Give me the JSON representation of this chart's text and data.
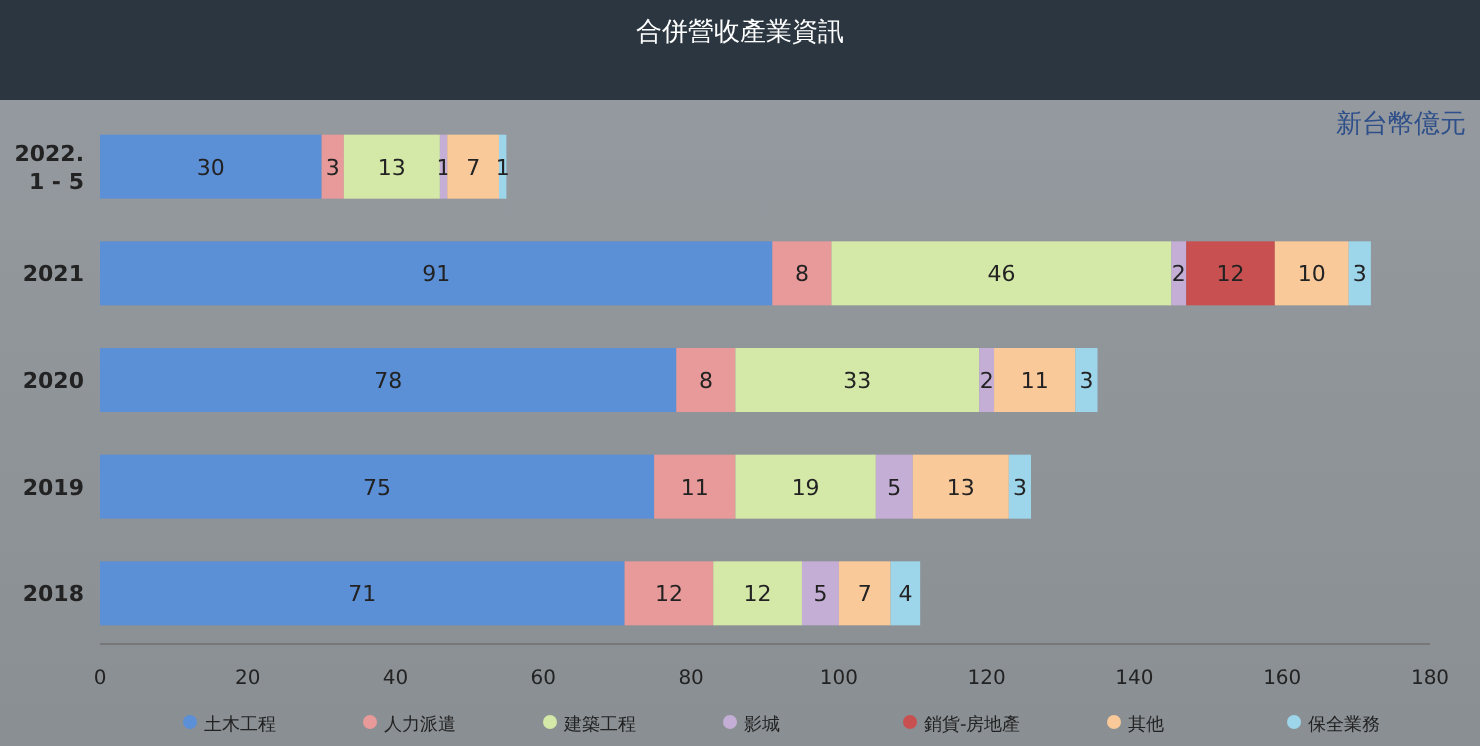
{
  "chart_data": {
    "type": "bar",
    "title": "合併營收產業資訊",
    "orientation": "horizontal",
    "stacked": true,
    "categories": [
      "2022.\n1 - 5",
      "2021",
      "2020",
      "2019",
      "2018"
    ],
    "series": [
      {
        "name": "土木工程",
        "color": "#5b8fd6",
        "values": [
          30,
          91,
          78,
          75,
          71
        ]
      },
      {
        "name": "人力派遣",
        "color": "#e89a9a",
        "values": [
          3,
          8,
          8,
          11,
          12
        ]
      },
      {
        "name": "建築工程",
        "color": "#d4e8a8",
        "values": [
          13,
          46,
          33,
          19,
          12
        ]
      },
      {
        "name": "影城",
        "color": "#c5aed6",
        "values": [
          1,
          2,
          2,
          5,
          5
        ]
      },
      {
        "name": "銷貨-房地產",
        "color": "#c85050",
        "values": [
          null,
          12,
          null,
          null,
          null
        ]
      },
      {
        "name": "其他",
        "color": "#f9c99a",
        "values": [
          7,
          10,
          11,
          13,
          7
        ]
      },
      {
        "name": "保全業務",
        "color": "#9dd6ea",
        "values": [
          1,
          3,
          3,
          3,
          4
        ]
      }
    ],
    "xlim": [
      0,
      180
    ],
    "xticks": [
      0,
      20,
      40,
      60,
      80,
      100,
      120,
      140,
      160,
      180
    ],
    "data_labels": true,
    "legend": "bottom",
    "grid": false,
    "annotations": [
      "新台幣億元"
    ]
  }
}
